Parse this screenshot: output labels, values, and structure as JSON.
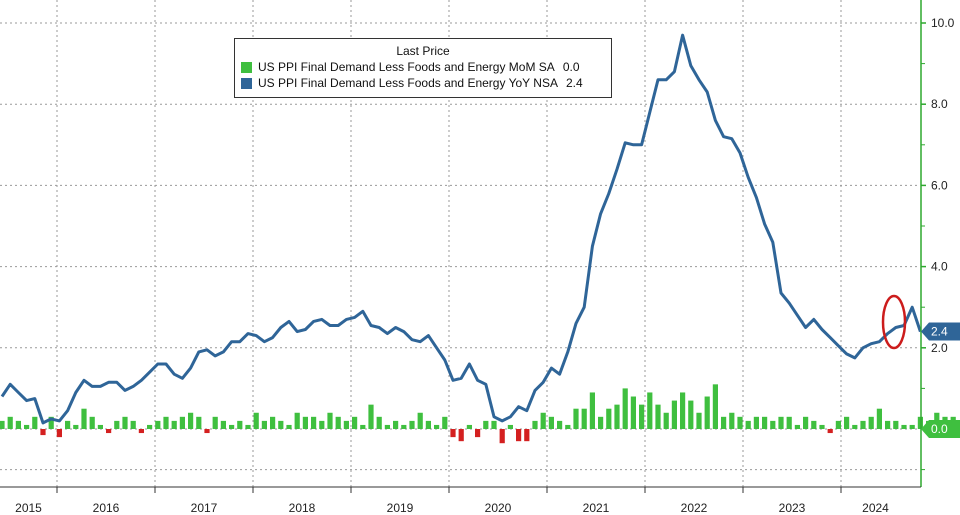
{
  "colors": {
    "mom": "#3fbf3f",
    "mom_negative": "#d42020",
    "yoy": "#2f6598",
    "annotation": "#cc1c1c",
    "axis_green": "#2ea82e"
  },
  "legend": {
    "title": "Last Price",
    "items": [
      {
        "label": "US PPI Final Demand Less Foods and Energy MoM SA",
        "value": "0.0"
      },
      {
        "label": "US PPI Final Demand Less Foods and Energy YoY NSA",
        "value": "2.4"
      }
    ]
  },
  "chart_data": {
    "type": "line",
    "title": "",
    "xlabel": "",
    "ylabel": "",
    "ylim": [
      -1.2,
      10.5
    ],
    "yticks": [
      "10.0",
      "8.0",
      "6.0",
      "4.0",
      "2.0",
      "0.0"
    ],
    "years": [
      "2015",
      "2016",
      "2017",
      "2018",
      "2019",
      "2020",
      "2021",
      "2022",
      "2023",
      "2024"
    ],
    "x_start": "2014-09",
    "last_value_badges": [
      "2.4",
      "0.0"
    ],
    "grid": true,
    "legend_position": "top-center",
    "series": [
      {
        "name": "US PPI Final Demand Less Foods and Energy YoY NSA",
        "kind": "line",
        "values": [
          0.8,
          1.1,
          0.9,
          0.7,
          0.75,
          0.15,
          0.25,
          0.2,
          0.45,
          0.9,
          1.2,
          1.05,
          1.05,
          1.15,
          1.15,
          0.95,
          1.05,
          1.2,
          1.4,
          1.6,
          1.6,
          1.35,
          1.25,
          1.5,
          1.9,
          1.95,
          1.8,
          1.9,
          2.15,
          2.15,
          2.35,
          2.3,
          2.15,
          2.25,
          2.5,
          2.65,
          2.4,
          2.45,
          2.65,
          2.7,
          2.55,
          2.55,
          2.7,
          2.75,
          2.9,
          2.55,
          2.5,
          2.35,
          2.5,
          2.4,
          2.2,
          2.15,
          2.3,
          2.0,
          1.7,
          1.2,
          1.25,
          1.6,
          1.2,
          1.1,
          0.3,
          0.2,
          0.3,
          0.55,
          0.45,
          0.95,
          1.15,
          1.5,
          1.35,
          1.9,
          2.6,
          3.0,
          4.5,
          5.3,
          5.8,
          6.4,
          7.05,
          7.0,
          7.0,
          7.8,
          8.6,
          8.6,
          8.8,
          9.7,
          8.95,
          8.6,
          8.3,
          7.6,
          7.2,
          7.15,
          6.8,
          6.2,
          5.7,
          5.05,
          4.6,
          3.35,
          3.1,
          2.8,
          2.5,
          2.7,
          2.45,
          2.25,
          2.05,
          1.85,
          1.75,
          2.0,
          2.1,
          2.15,
          2.35,
          2.5,
          2.55,
          3.0,
          2.4
        ]
      },
      {
        "name": "US PPI Final Demand Less Foods and Energy MoM SA",
        "kind": "bar",
        "values": [
          0.2,
          0.3,
          0.2,
          0.1,
          0.3,
          -0.15,
          0.3,
          -0.2,
          0.2,
          0.1,
          0.5,
          0.3,
          0.1,
          -0.1,
          0.2,
          0.3,
          0.2,
          -0.1,
          0.1,
          0.2,
          0.3,
          0.2,
          0.3,
          0.4,
          0.3,
          -0.1,
          0.3,
          0.2,
          0.1,
          0.2,
          0.1,
          0.4,
          0.2,
          0.3,
          0.2,
          0.1,
          0.4,
          0.3,
          0.3,
          0.2,
          0.4,
          0.3,
          0.2,
          0.3,
          0.1,
          0.6,
          0.3,
          0.1,
          0.2,
          0.1,
          0.2,
          0.4,
          0.2,
          0.1,
          0.3,
          -0.2,
          -0.3,
          0.1,
          -0.2,
          0.2,
          0.2,
          -0.35,
          0.1,
          -0.3,
          -0.3,
          0.2,
          0.4,
          0.3,
          0.2,
          0.1,
          0.5,
          0.5,
          0.9,
          0.3,
          0.5,
          0.6,
          1.0,
          0.8,
          0.6,
          0.9,
          0.6,
          0.4,
          0.7,
          0.9,
          0.7,
          0.4,
          0.8,
          1.1,
          0.3,
          0.4,
          0.3,
          0.2,
          0.3,
          0.3,
          0.2,
          0.3,
          0.3,
          0.1,
          0.3,
          0.2,
          0.1,
          -0.1,
          0.2,
          0.3,
          0.1,
          0.2,
          0.3,
          0.5,
          0.2,
          0.2,
          0.1,
          0.1,
          0.3,
          0.2,
          0.4,
          0.3,
          0.3,
          0.0
        ]
      }
    ]
  }
}
